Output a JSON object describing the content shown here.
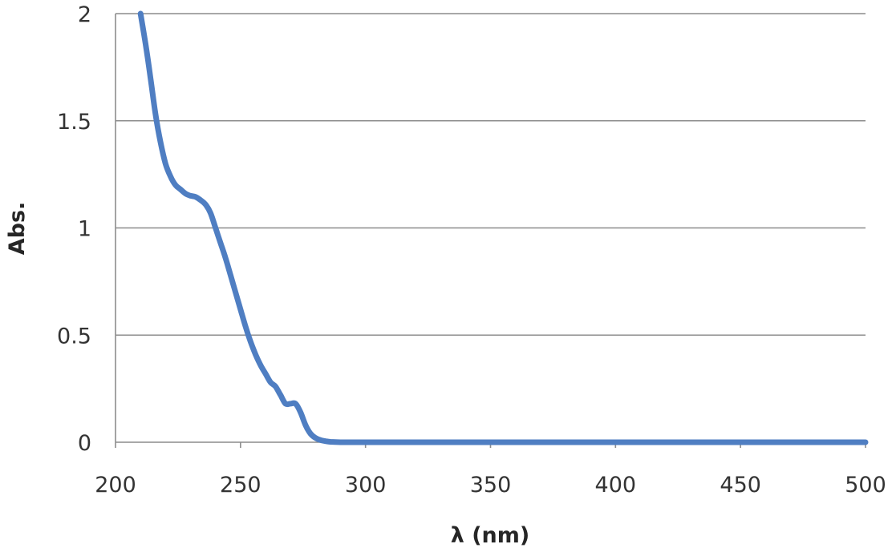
{
  "chart_data": {
    "type": "line",
    "title": "",
    "xlabel": "λ (nm)",
    "ylabel": "Abs.",
    "xlim": [
      200,
      500
    ],
    "ylim": [
      0,
      2
    ],
    "x_ticks": [
      "200",
      "250",
      "300",
      "350",
      "400",
      "450",
      "500"
    ],
    "y_ticks": [
      "0",
      "0.5",
      "1",
      "1.5",
      "2"
    ],
    "grid": "horizontal",
    "legend": "none",
    "line_color": "#4f7ec2",
    "series": [
      {
        "x": [
          210,
          212,
          214,
          216,
          218,
          220,
          222,
          224,
          226,
          228,
          230,
          232,
          234,
          236,
          238,
          240,
          242,
          244,
          246,
          248,
          250,
          252,
          254,
          256,
          258,
          260,
          262,
          264,
          266,
          268,
          270,
          272,
          274,
          276,
          278,
          280,
          282,
          284,
          286,
          290,
          295,
          300,
          320,
          350,
          400,
          450,
          500
        ],
        "y": [
          2.0,
          1.86,
          1.7,
          1.53,
          1.4,
          1.3,
          1.24,
          1.2,
          1.18,
          1.16,
          1.15,
          1.145,
          1.13,
          1.11,
          1.07,
          1.0,
          0.93,
          0.86,
          0.78,
          0.7,
          0.62,
          0.54,
          0.47,
          0.41,
          0.36,
          0.32,
          0.28,
          0.26,
          0.22,
          0.18,
          0.18,
          0.18,
          0.14,
          0.08,
          0.04,
          0.02,
          0.01,
          0.005,
          0.002,
          0.0,
          0.0,
          0.0,
          0.0,
          0.0,
          0.0,
          0.0,
          0.0
        ]
      }
    ]
  }
}
